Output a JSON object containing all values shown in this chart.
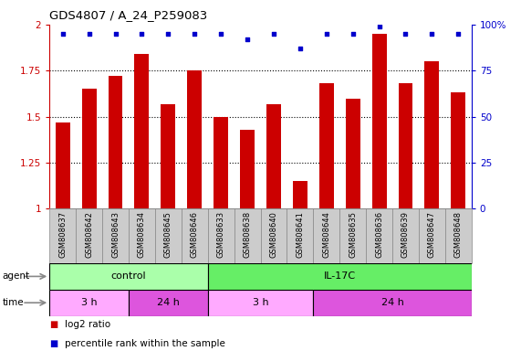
{
  "title": "GDS4807 / A_24_P259083",
  "samples": [
    "GSM808637",
    "GSM808642",
    "GSM808643",
    "GSM808634",
    "GSM808645",
    "GSM808646",
    "GSM808633",
    "GSM808638",
    "GSM808640",
    "GSM808641",
    "GSM808644",
    "GSM808635",
    "GSM808636",
    "GSM808639",
    "GSM808647",
    "GSM808648"
  ],
  "log2_ratio": [
    1.47,
    1.65,
    1.72,
    1.84,
    1.57,
    1.75,
    1.5,
    1.43,
    1.57,
    1.15,
    1.68,
    1.6,
    1.95,
    1.68,
    1.8,
    1.63
  ],
  "percentile": [
    95,
    95,
    95,
    95,
    95,
    95,
    95,
    92,
    95,
    87,
    95,
    95,
    99,
    95,
    95,
    95
  ],
  "bar_color": "#cc0000",
  "dot_color": "#0000cc",
  "ylim_left": [
    1.0,
    2.0
  ],
  "yticks_left": [
    1.0,
    1.25,
    1.5,
    1.75,
    2.0
  ],
  "ytick_labels_left": [
    "1",
    "1.25",
    "1.5",
    "1.75",
    "2"
  ],
  "ylim_right": [
    0,
    100
  ],
  "yticks_right": [
    0,
    25,
    50,
    75,
    100
  ],
  "ytick_labels_right": [
    "0",
    "25",
    "50",
    "75",
    "100%"
  ],
  "agent_groups": [
    {
      "label": "control",
      "start": 0,
      "end": 6,
      "color": "#aaffaa"
    },
    {
      "label": "IL-17C",
      "start": 6,
      "end": 16,
      "color": "#66ee66"
    }
  ],
  "time_groups": [
    {
      "label": "3 h",
      "start": 0,
      "end": 3,
      "color": "#ffaaff"
    },
    {
      "label": "24 h",
      "start": 3,
      "end": 6,
      "color": "#dd55dd"
    },
    {
      "label": "3 h",
      "start": 6,
      "end": 10,
      "color": "#ffaaff"
    },
    {
      "label": "24 h",
      "start": 10,
      "end": 16,
      "color": "#dd55dd"
    }
  ],
  "legend_red_label": "log2 ratio",
  "legend_blue_label": "percentile rank within the sample",
  "bg_color": "#ffffff",
  "tick_color_left": "#cc0000",
  "tick_color_right": "#0000cc",
  "bar_width": 0.55,
  "dot_size": 12,
  "grid_yticks": [
    1.25,
    1.5,
    1.75
  ]
}
